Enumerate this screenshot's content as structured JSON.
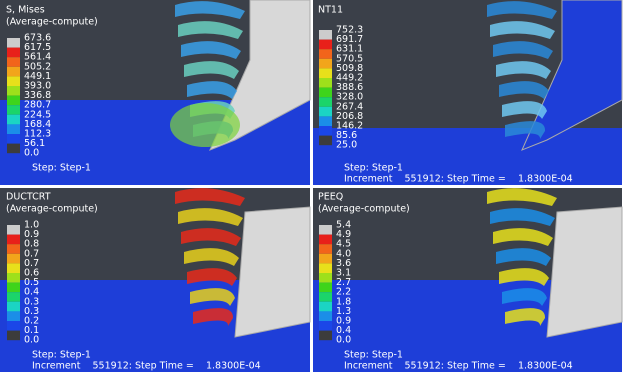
{
  "panels": [
    {
      "title": "S, Mises",
      "subtitle": "(Average-compute)",
      "legend": [
        "673.6",
        "617.5",
        "561.4",
        "505.2",
        "449.1",
        "393.0",
        "336.8",
        "280.7",
        "224.5",
        "168.4",
        "112.3",
        "56.1",
        "0.0"
      ],
      "step": "Step: Step-1"
    },
    {
      "title": "NT11",
      "legend": [
        "752.3",
        "691.7",
        "631.1",
        "570.5",
        "509.8",
        "449.2",
        "388.6",
        "328.0",
        "267.4",
        "206.8",
        "146.2",
        "85.6",
        "25.0"
      ],
      "step": "Step: Step-1",
      "increment": "Increment    551912: Step Time =    1.8300E-04"
    },
    {
      "title": "DUCTCRT",
      "subtitle": "(Average-compute)",
      "legend": [
        "1.0",
        "0.9",
        "0.8",
        "0.7",
        "0.7",
        "0.6",
        "0.5",
        "0.4",
        "0.3",
        "0.3",
        "0.2",
        "0.1",
        "0.0"
      ],
      "step": "Step: Step-1",
      "increment": "Increment    551912: Step Time =    1.8300E-04"
    },
    {
      "title": "PEEQ",
      "subtitle": "(Average-compute)",
      "legend": [
        "5.4",
        "4.9",
        "4.5",
        "4.0",
        "3.6",
        "3.1",
        "2.7",
        "2.2",
        "1.8",
        "1.3",
        "0.9",
        "0.4",
        "0.0"
      ],
      "step": "Step: Step-1",
      "increment": "Increment    551912: Step Time =    1.8300E-04"
    }
  ]
}
